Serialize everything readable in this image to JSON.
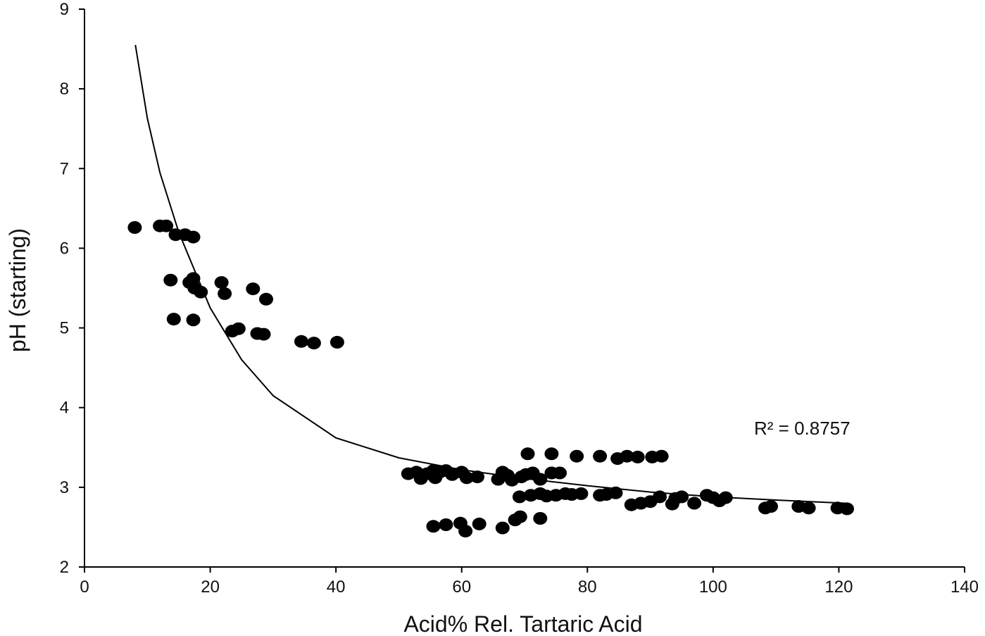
{
  "chart_data": {
    "type": "scatter",
    "title": "",
    "xlabel": "Acid% Rel. Tartaric Acid",
    "ylabel": "pH (starting)",
    "xlim": [
      0,
      140
    ],
    "ylim": [
      2,
      9
    ],
    "x_ticks": [
      0,
      20,
      40,
      60,
      80,
      100,
      120,
      140
    ],
    "y_ticks": [
      2,
      3,
      4,
      5,
      6,
      7,
      8,
      9
    ],
    "grid": false,
    "legend": "none",
    "marker_color": "#000000",
    "annotation": "R² = 0.8757",
    "trendline": {
      "type": "logarithmic",
      "color": "#000000",
      "x_start": 8.1,
      "x_end": 121,
      "x": [
        8.1,
        10,
        12,
        15,
        20,
        25,
        30,
        40,
        50,
        60,
        70,
        80,
        90,
        100,
        110,
        121
      ],
      "y": [
        8.55,
        7.63,
        6.95,
        6.2,
        5.25,
        4.6,
        4.15,
        3.62,
        3.37,
        3.22,
        3.11,
        3.02,
        2.94,
        2.88,
        2.84,
        2.8
      ]
    },
    "series": [
      {
        "points": [
          [
            8,
            6.26
          ],
          [
            12,
            6.28
          ],
          [
            13,
            6.28
          ],
          [
            14.5,
            6.17
          ],
          [
            16,
            6.17
          ],
          [
            17.3,
            6.14
          ],
          [
            13.7,
            5.6
          ],
          [
            17.3,
            5.62
          ],
          [
            16.7,
            5.57
          ],
          [
            17.5,
            5.5
          ],
          [
            18.5,
            5.45
          ],
          [
            21.8,
            5.57
          ],
          [
            22.3,
            5.43
          ],
          [
            26.8,
            5.49
          ],
          [
            28.9,
            5.36
          ],
          [
            14.2,
            5.11
          ],
          [
            17.3,
            5.1
          ],
          [
            23.5,
            4.96
          ],
          [
            24.5,
            4.99
          ],
          [
            27.5,
            4.93
          ],
          [
            28.5,
            4.92
          ],
          [
            34.5,
            4.83
          ],
          [
            36.5,
            4.81
          ],
          [
            40.2,
            4.82
          ],
          [
            51.5,
            3.17
          ],
          [
            52.8,
            3.19
          ],
          [
            53.5,
            3.11
          ],
          [
            54.5,
            3.17
          ],
          [
            55.5,
            3.21
          ],
          [
            55.8,
            3.12
          ],
          [
            56.5,
            3.19
          ],
          [
            57.5,
            3.21
          ],
          [
            58.5,
            3.16
          ],
          [
            60,
            3.19
          ],
          [
            60.8,
            3.12
          ],
          [
            62.5,
            3.13
          ],
          [
            65.8,
            3.1
          ],
          [
            66.5,
            3.19
          ],
          [
            67.3,
            3.15
          ],
          [
            68,
            3.09
          ],
          [
            69.5,
            3.13
          ],
          [
            70.2,
            3.16
          ],
          [
            71.3,
            3.18
          ],
          [
            72.5,
            3.1
          ],
          [
            74.3,
            3.18
          ],
          [
            75.6,
            3.18
          ],
          [
            70.5,
            3.42
          ],
          [
            74.3,
            3.42
          ],
          [
            78.3,
            3.39
          ],
          [
            82,
            3.39
          ],
          [
            84.8,
            3.36
          ],
          [
            86.3,
            3.39
          ],
          [
            88,
            3.38
          ],
          [
            90.3,
            3.38
          ],
          [
            91.8,
            3.39
          ],
          [
            69.2,
            2.88
          ],
          [
            71,
            2.9
          ],
          [
            72.5,
            2.92
          ],
          [
            73.5,
            2.89
          ],
          [
            75,
            2.9
          ],
          [
            76.5,
            2.92
          ],
          [
            77.5,
            2.91
          ],
          [
            79,
            2.92
          ],
          [
            82,
            2.9
          ],
          [
            83,
            2.91
          ],
          [
            84.5,
            2.93
          ],
          [
            87,
            2.78
          ],
          [
            88.5,
            2.8
          ],
          [
            90,
            2.82
          ],
          [
            91.5,
            2.88
          ],
          [
            93.5,
            2.79
          ],
          [
            94,
            2.86
          ],
          [
            95,
            2.88
          ],
          [
            97,
            2.8
          ],
          [
            99,
            2.9
          ],
          [
            100,
            2.87
          ],
          [
            101,
            2.83
          ],
          [
            102,
            2.87
          ],
          [
            108.3,
            2.74
          ],
          [
            109.2,
            2.76
          ],
          [
            113.6,
            2.76
          ],
          [
            115.2,
            2.74
          ],
          [
            119.8,
            2.74
          ],
          [
            121.3,
            2.73
          ],
          [
            55.5,
            2.51
          ],
          [
            57.5,
            2.53
          ],
          [
            59.8,
            2.55
          ],
          [
            60.6,
            2.45
          ],
          [
            62.8,
            2.54
          ],
          [
            66.5,
            2.49
          ],
          [
            68.5,
            2.59
          ],
          [
            69.3,
            2.63
          ],
          [
            72.5,
            2.61
          ]
        ]
      }
    ]
  }
}
